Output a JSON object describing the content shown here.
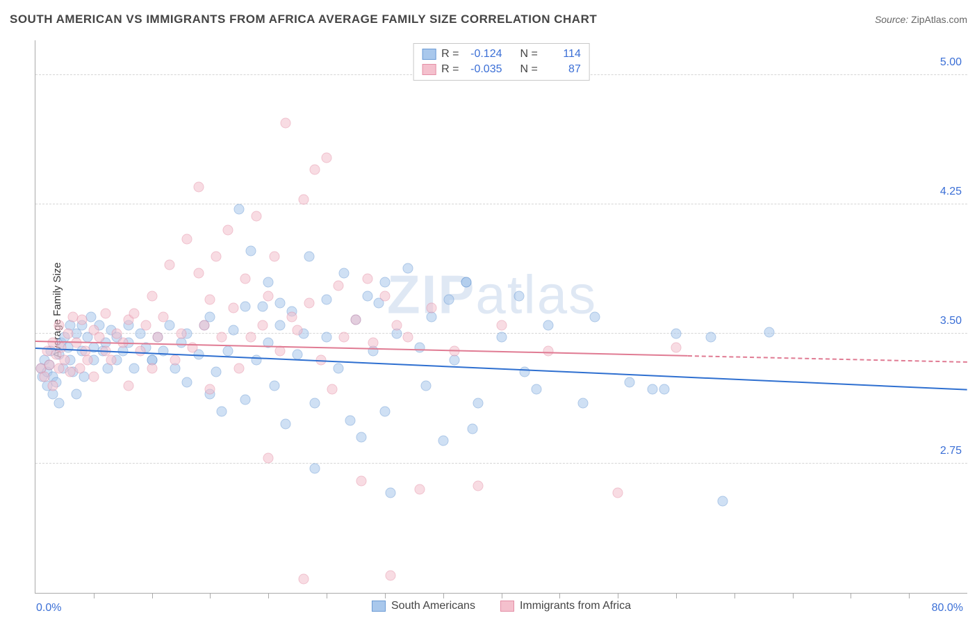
{
  "title": "SOUTH AMERICAN VS IMMIGRANTS FROM AFRICA AVERAGE FAMILY SIZE CORRELATION CHART",
  "source_label": "Source:",
  "source_value": "ZipAtlas.com",
  "watermark": "ZIPatlas",
  "y_axis_label": "Average Family Size",
  "chart": {
    "type": "scatter",
    "xlim": [
      0,
      80
    ],
    "ylim": [
      2.0,
      5.2
    ],
    "x_tick_step": 5,
    "y_ticks": [
      2.75,
      3.5,
      4.25,
      5.0
    ],
    "x_start_label": "0.0%",
    "x_end_label": "80.0%",
    "background_color": "#ffffff",
    "grid_color": "#d5d5d5",
    "axis_color": "#aaaaaa",
    "tick_label_color": "#3b6fd6",
    "marker_radius": 7.5,
    "marker_opacity": 0.55,
    "series": [
      {
        "name": "South Americans",
        "fill": "#a9c8ec",
        "stroke": "#6a9ad4",
        "trend_color": "#2e6fd0",
        "trend_y_at_x0": 3.42,
        "trend_y_at_x80": 3.18,
        "trend_solid_to_x": 80,
        "r": "-0.124",
        "n": "114",
        "points": [
          [
            0.5,
            3.3
          ],
          [
            0.6,
            3.25
          ],
          [
            0.8,
            3.35
          ],
          [
            1.0,
            3.28
          ],
          [
            1.0,
            3.2
          ],
          [
            1.2,
            3.32
          ],
          [
            1.3,
            3.4
          ],
          [
            1.5,
            3.15
          ],
          [
            1.5,
            3.25
          ],
          [
            1.8,
            3.22
          ],
          [
            2.0,
            3.38
          ],
          [
            2.0,
            3.1
          ],
          [
            2.2,
            3.45
          ],
          [
            2.4,
            3.3
          ],
          [
            2.5,
            3.48
          ],
          [
            2.8,
            3.42
          ],
          [
            3.0,
            3.35
          ],
          [
            3.0,
            3.55
          ],
          [
            3.2,
            3.28
          ],
          [
            3.5,
            3.5
          ],
          [
            3.5,
            3.15
          ],
          [
            4.0,
            3.4
          ],
          [
            4.0,
            3.55
          ],
          [
            4.2,
            3.25
          ],
          [
            4.5,
            3.48
          ],
          [
            4.8,
            3.6
          ],
          [
            5.0,
            3.35
          ],
          [
            5.0,
            3.42
          ],
          [
            5.5,
            3.55
          ],
          [
            5.8,
            3.4
          ],
          [
            6.0,
            3.45
          ],
          [
            6.2,
            3.3
          ],
          [
            6.5,
            3.52
          ],
          [
            7.0,
            3.48
          ],
          [
            7.0,
            3.35
          ],
          [
            7.5,
            3.4
          ],
          [
            8.0,
            3.45
          ],
          [
            8.0,
            3.55
          ],
          [
            8.5,
            3.3
          ],
          [
            9.0,
            3.5
          ],
          [
            9.5,
            3.42
          ],
          [
            10.0,
            3.35
          ],
          [
            10.0,
            3.35
          ],
          [
            10.5,
            3.48
          ],
          [
            11.0,
            3.4
          ],
          [
            11.5,
            3.55
          ],
          [
            12.0,
            3.3
          ],
          [
            12.5,
            3.45
          ],
          [
            13.0,
            3.22
          ],
          [
            13.0,
            3.5
          ],
          [
            14.0,
            3.38
          ],
          [
            14.5,
            3.55
          ],
          [
            15.0,
            3.15
          ],
          [
            15.0,
            3.6
          ],
          [
            15.5,
            3.28
          ],
          [
            16.0,
            3.05
          ],
          [
            16.5,
            3.4
          ],
          [
            17.0,
            3.52
          ],
          [
            17.5,
            4.22
          ],
          [
            18.0,
            3.12
          ],
          [
            18.5,
            3.98
          ],
          [
            19.0,
            3.35
          ],
          [
            19.5,
            3.66
          ],
          [
            20.0,
            3.45
          ],
          [
            20.0,
            3.8
          ],
          [
            20.5,
            3.2
          ],
          [
            21.0,
            3.55
          ],
          [
            21.5,
            2.98
          ],
          [
            22.0,
            3.63
          ],
          [
            22.5,
            3.38
          ],
          [
            23.0,
            3.5
          ],
          [
            23.5,
            3.95
          ],
          [
            24.0,
            3.1
          ],
          [
            24.0,
            2.72
          ],
          [
            25.0,
            3.48
          ],
          [
            25.0,
            3.7
          ],
          [
            26.0,
            3.3
          ],
          [
            26.5,
            3.85
          ],
          [
            27.0,
            3.0
          ],
          [
            27.5,
            3.58
          ],
          [
            28.0,
            2.9
          ],
          [
            28.5,
            3.72
          ],
          [
            29.0,
            3.4
          ],
          [
            29.5,
            3.68
          ],
          [
            30.0,
            3.05
          ],
          [
            30.0,
            3.8
          ],
          [
            30.5,
            2.58
          ],
          [
            31.0,
            3.5
          ],
          [
            32.0,
            3.88
          ],
          [
            33.0,
            3.42
          ],
          [
            33.5,
            3.2
          ],
          [
            34.0,
            3.6
          ],
          [
            35.0,
            2.88
          ],
          [
            35.5,
            3.7
          ],
          [
            36.0,
            3.35
          ],
          [
            37.0,
            3.8
          ],
          [
            37.0,
            3.8
          ],
          [
            37.5,
            2.95
          ],
          [
            38.0,
            3.1
          ],
          [
            40.0,
            3.48
          ],
          [
            41.5,
            3.72
          ],
          [
            42.0,
            3.28
          ],
          [
            43.0,
            3.18
          ],
          [
            44.0,
            3.55
          ],
          [
            47.0,
            3.1
          ],
          [
            48.0,
            3.6
          ],
          [
            51.0,
            3.22
          ],
          [
            53.0,
            3.18
          ],
          [
            54.0,
            3.18
          ],
          [
            55.0,
            3.5
          ],
          [
            58.0,
            3.48
          ],
          [
            59.0,
            2.53
          ],
          [
            63.0,
            3.51
          ],
          [
            21.0,
            3.68
          ],
          [
            18.0,
            3.66
          ]
        ]
      },
      {
        "name": "Immigrants from Africa",
        "fill": "#f4c0cd",
        "stroke": "#e48fa6",
        "trend_color": "#e07b93",
        "trend_y_at_x0": 3.46,
        "trend_y_at_x80": 3.34,
        "trend_solid_to_x": 56,
        "r": "-0.035",
        "n": "87",
        "points": [
          [
            0.5,
            3.3
          ],
          [
            0.8,
            3.25
          ],
          [
            1.0,
            3.4
          ],
          [
            1.2,
            3.32
          ],
          [
            1.5,
            3.45
          ],
          [
            1.5,
            3.2
          ],
          [
            1.8,
            3.38
          ],
          [
            2.0,
            3.3
          ],
          [
            2.0,
            3.55
          ],
          [
            2.2,
            3.42
          ],
          [
            2.5,
            3.35
          ],
          [
            2.8,
            3.5
          ],
          [
            3.0,
            3.28
          ],
          [
            3.2,
            3.6
          ],
          [
            3.5,
            3.45
          ],
          [
            3.8,
            3.3
          ],
          [
            4.0,
            3.58
          ],
          [
            4.3,
            3.4
          ],
          [
            4.5,
            3.35
          ],
          [
            5.0,
            3.52
          ],
          [
            5.0,
            3.25
          ],
          [
            5.5,
            3.48
          ],
          [
            6.0,
            3.4
          ],
          [
            6.0,
            3.62
          ],
          [
            6.5,
            3.35
          ],
          [
            7.0,
            3.5
          ],
          [
            7.5,
            3.45
          ],
          [
            8.0,
            3.58
          ],
          [
            8.0,
            3.2
          ],
          [
            8.5,
            3.62
          ],
          [
            9.0,
            3.4
          ],
          [
            9.5,
            3.55
          ],
          [
            10.0,
            3.3
          ],
          [
            10.0,
            3.72
          ],
          [
            10.5,
            3.48
          ],
          [
            11.0,
            3.6
          ],
          [
            11.5,
            3.9
          ],
          [
            12.0,
            3.35
          ],
          [
            12.5,
            3.5
          ],
          [
            13.0,
            4.05
          ],
          [
            13.5,
            3.42
          ],
          [
            14.0,
            3.85
          ],
          [
            14.0,
            4.35
          ],
          [
            14.5,
            3.55
          ],
          [
            15.0,
            3.7
          ],
          [
            15.0,
            3.18
          ],
          [
            15.5,
            3.95
          ],
          [
            16.0,
            3.48
          ],
          [
            16.5,
            4.1
          ],
          [
            17.0,
            3.65
          ],
          [
            17.5,
            3.3
          ],
          [
            18.0,
            3.82
          ],
          [
            18.5,
            3.48
          ],
          [
            19.0,
            4.18
          ],
          [
            19.5,
            3.55
          ],
          [
            20.0,
            3.72
          ],
          [
            20.0,
            2.78
          ],
          [
            20.5,
            3.95
          ],
          [
            21.0,
            3.4
          ],
          [
            21.5,
            4.72
          ],
          [
            22.0,
            3.6
          ],
          [
            22.5,
            3.52
          ],
          [
            23.0,
            4.28
          ],
          [
            23.0,
            2.08
          ],
          [
            23.5,
            3.68
          ],
          [
            24.0,
            4.45
          ],
          [
            24.5,
            3.35
          ],
          [
            25.0,
            4.52
          ],
          [
            25.5,
            3.18
          ],
          [
            26.0,
            3.78
          ],
          [
            26.5,
            3.48
          ],
          [
            27.5,
            3.58
          ],
          [
            28.0,
            2.65
          ],
          [
            28.5,
            3.82
          ],
          [
            29.0,
            3.45
          ],
          [
            30.0,
            3.72
          ],
          [
            30.5,
            2.1
          ],
          [
            31.0,
            3.55
          ],
          [
            32.0,
            3.48
          ],
          [
            33.0,
            2.6
          ],
          [
            34.0,
            3.65
          ],
          [
            36.0,
            3.4
          ],
          [
            38.0,
            2.62
          ],
          [
            40.0,
            3.55
          ],
          [
            44.0,
            3.4
          ],
          [
            50.0,
            2.58
          ],
          [
            55.0,
            3.42
          ]
        ]
      }
    ]
  },
  "stats_legend": {
    "r_label": "R =",
    "n_label": "N ="
  },
  "bottom_legend_labels": [
    "South Americans",
    "Immigrants from Africa"
  ]
}
